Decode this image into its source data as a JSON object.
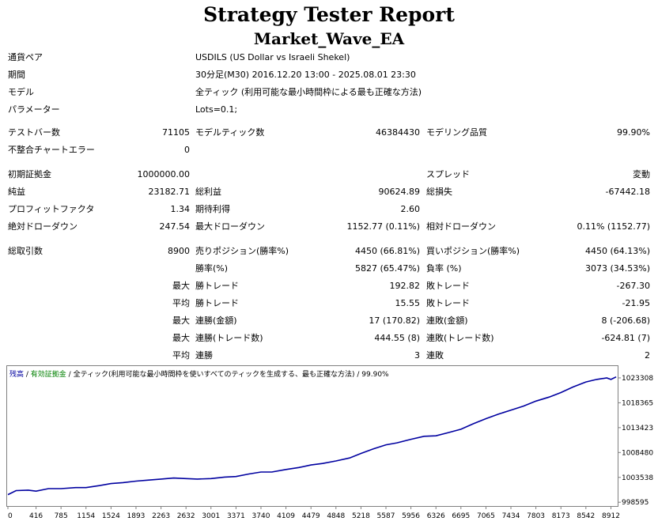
{
  "report": {
    "title": "Strategy Tester Report",
    "ea_name": "Market_Wave_EA"
  },
  "info": {
    "symbol_label": "通貨ペア",
    "symbol_value": "USDILS (US Dollar vs Israeli Shekel)",
    "period_label": "期間",
    "period_value": "30分足(M30) 2016.12.20 13:00 - 2025.08.01 23:30",
    "model_label": "モデル",
    "model_value": "全ティック (利用可能な最小時間枠による最も正確な方法)",
    "params_label": "パラメーター",
    "params_value": "Lots=0.1;"
  },
  "stats": {
    "bars_label": "テストバー数",
    "bars_value": "71105",
    "ticks_label": "モデルティック数",
    "ticks_value": "46384430",
    "quality_label": "モデリング品質",
    "quality_value": "99.90%",
    "mismatch_label": "不整合チャートエラー",
    "mismatch_value": "0",
    "deposit_label": "初期証拠金",
    "deposit_value": "1000000.00",
    "spread_label": "スプレッド",
    "spread_value": "変動",
    "net_label": "純益",
    "net_value": "23182.71",
    "gross_profit_label": "総利益",
    "gross_profit_value": "90624.89",
    "gross_loss_label": "総損失",
    "gross_loss_value": "-67442.18",
    "pf_label": "プロフィットファクタ",
    "pf_value": "1.34",
    "expected_label": "期待利得",
    "expected_value": "2.60",
    "abs_dd_label": "絶対ドローダウン",
    "abs_dd_value": "247.54",
    "max_dd_label": "最大ドローダウン",
    "max_dd_value": "1152.77 (0.11%)",
    "rel_dd_label": "相対ドローダウン",
    "rel_dd_value": "0.11% (1152.77)",
    "total_label": "総取引数",
    "total_value": "8900",
    "short_label": "売りポジション(勝率%)",
    "short_value": "4450 (66.81%)",
    "long_label": "買いポジション(勝率%)",
    "long_value": "4450 (64.13%)",
    "win_rate_label": "勝率(%)",
    "win_rate_value": "5827 (65.47%)",
    "loss_rate_label": "負率 (%)",
    "loss_rate_value": "3073 (34.53%)",
    "max_prefix": "最大",
    "avg_prefix": "平均",
    "largest_win_label": "勝トレード",
    "largest_win_value": "192.82",
    "largest_loss_label": "敗トレード",
    "largest_loss_value": "-267.30",
    "avg_win_label": "勝トレード",
    "avg_win_value": "15.55",
    "avg_loss_label": "敗トレード",
    "avg_loss_value": "-21.95",
    "max_consec_wins_money_label": "連勝(金額)",
    "max_consec_wins_money_value": "17 (170.82)",
    "max_consec_losses_money_label": "連敗(金額)",
    "max_consec_losses_money_value": "8 (-206.68)",
    "max_consec_profit_label": "連勝(トレード数)",
    "max_consec_profit_value": "444.55 (8)",
    "max_consec_loss_label": "連敗(トレード数)",
    "max_consec_loss_value": "-624.81 (7)",
    "avg_consec_wins_label": "連勝",
    "avg_consec_wins_value": "3",
    "avg_consec_losses_label": "連敗",
    "avg_consec_losses_value": "2"
  },
  "chart_data": {
    "type": "line",
    "legend": {
      "balance": "残高",
      "sep1": " / ",
      "equity": "有効証拠金",
      "sep2": " / ",
      "model": "全ティック(利用可能な最小時間枠を使いすべてのティックを生成する、最も正確な方法)",
      "sep3": " / ",
      "quality": "99.90%"
    },
    "legend_colors": {
      "balance": "#0000a0",
      "equity": "#008000",
      "text": "#000000"
    },
    "x_ticks": [
      0,
      416,
      785,
      1154,
      1524,
      1893,
      2263,
      2632,
      3001,
      3371,
      3740,
      4109,
      4479,
      4848,
      5218,
      5587,
      5956,
      6326,
      6695,
      7065,
      7434,
      7803,
      8173,
      8542,
      8912
    ],
    "y_ticks": [
      998595,
      1003538,
      1008480,
      1013423,
      1018365,
      1023308
    ],
    "xlim": [
      0,
      9000
    ],
    "ylim": [
      998000,
      1025500
    ],
    "line_color": "#0000a0",
    "series": [
      {
        "x": [
          0,
          120,
          300,
          416,
          600,
          785,
          1000,
          1154,
          1350,
          1524,
          1700,
          1893,
          2080,
          2263,
          2450,
          2632,
          2800,
          3001,
          3200,
          3371,
          3560,
          3740,
          3900,
          4109,
          4300,
          4479,
          4650,
          4848,
          5050,
          5218,
          5400,
          5587,
          5750,
          5956,
          6150,
          6326,
          6500,
          6695,
          6880,
          7065,
          7250,
          7434,
          7620,
          7803,
          8000,
          8173,
          8350,
          8542,
          8700,
          8850,
          8912,
          8990
        ],
        "y": [
          1000100,
          1000900,
          1001000,
          1000800,
          1001300,
          1001300,
          1001500,
          1001500,
          1001900,
          1002300,
          1002500,
          1002800,
          1003000,
          1003200,
          1003400,
          1003300,
          1003200,
          1003300,
          1003600,
          1003700,
          1004200,
          1004600,
          1004600,
          1005100,
          1005500,
          1006000,
          1006300,
          1006800,
          1007400,
          1008300,
          1009200,
          1010000,
          1010400,
          1011100,
          1011700,
          1011800,
          1012400,
          1013100,
          1014200,
          1015200,
          1016100,
          1016900,
          1017700,
          1018700,
          1019500,
          1020400,
          1021500,
          1022500,
          1023000,
          1023300,
          1023000,
          1023500
        ]
      }
    ]
  }
}
